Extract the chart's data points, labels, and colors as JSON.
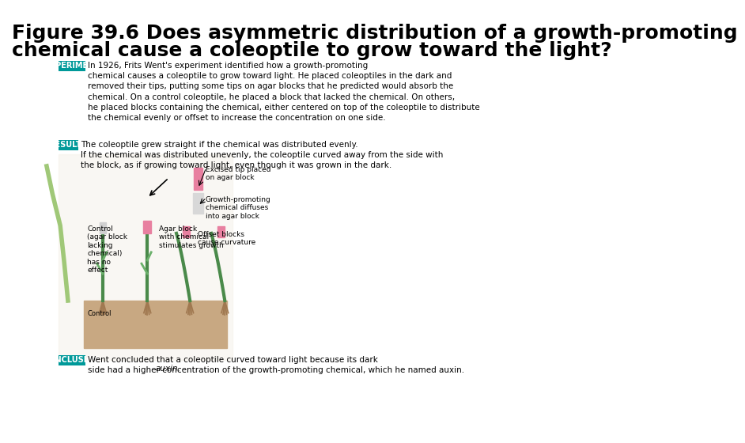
{
  "title_line1": "Figure 39.6 Does asymmetric distribution of a growth-promoting",
  "title_line2": "chemical cause a coleoptile to grow toward the light?",
  "title_fontsize": 18,
  "title_color": "#000000",
  "bg_color": "#ffffff",
  "experiment_label": "EXPERIMENT",
  "experiment_label_bg": "#009999",
  "experiment_label_color": "#ffffff",
  "experiment_text": "In 1926, Frits Went's experiment identified how a growth-promoting\nchemical causes a coleoptile to grow toward light. He placed coleoptiles in the dark and\nremoved their tips, putting some tips on agar blocks that he predicted would absorb the\nchemical. On a control coleoptile, he placed a block that lacked the chemical. On others,\nhe placed blocks containing the chemical, either centered on top of the coleoptile to distribute\nthe chemical evenly or offset to increase the concentration on one side.",
  "results_label": "RESULTS",
  "results_label_bg": "#009999",
  "results_label_color": "#ffffff",
  "results_text": "The coleoptile grew straight if the chemical was distributed evenly.\nIf the chemical was distributed unevenly, the coleoptile curved away from the side with\nthe block, as if growing toward light, even though it was grown in the dark.",
  "conclusion_label": "CONCLUSION",
  "conclusion_label_bg": "#009999",
  "conclusion_label_color": "#ffffff",
  "conclusion_text": "Went concluded that a coleoptile curved toward light because its dark\nside had a higher concentration of the growth-promoting chemical, which he named auxin.",
  "diagram_annotations": [
    "Excised tip placed\non agar block",
    "Growth-promoting\nchemical diffuses\ninto agar block",
    "Agar block\nwith chemical\nstimulates growth",
    "Control\n(agar block\nlacking\nchemical)\nhas no\neffect",
    "Control",
    "Offset blocks\ncause curvature"
  ],
  "section_label_fontsize": 7,
  "body_text_fontsize": 7.5,
  "diagram_text_fontsize": 6.5
}
